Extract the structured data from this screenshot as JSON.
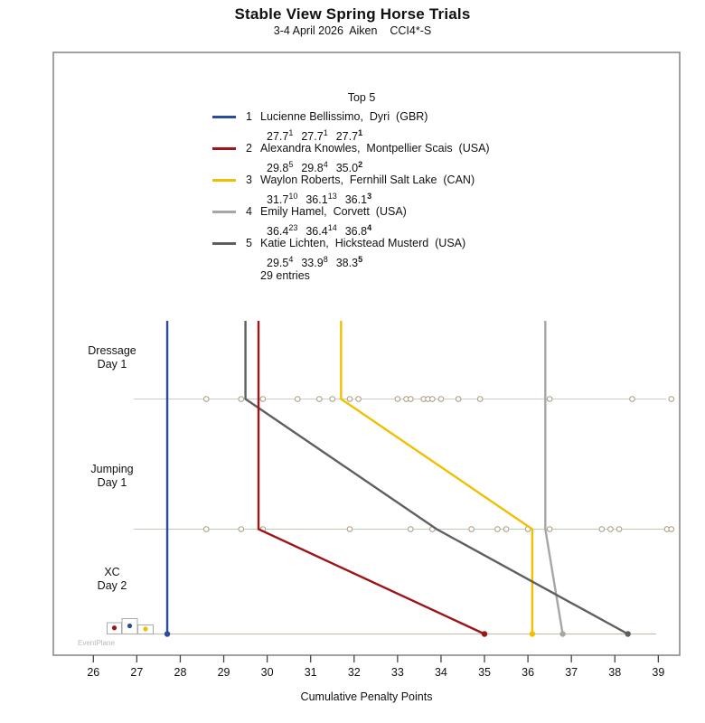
{
  "header": {
    "title": "Stable View Spring Horse Trials",
    "subtitle": "3-4 April 2026  Aiken    CCI4*-S"
  },
  "watermark": "EventPlane",
  "chart_data": {
    "type": "line",
    "title": "Stable View Spring Horse Trials",
    "subtitle": "3-4 April 2026  Aiken  CCI4*-S",
    "xlabel": "Cumulative Penalty Points",
    "xlim": [
      25.8,
      39.5
    ],
    "x_ticks": [
      26,
      27,
      28,
      29,
      30,
      31,
      32,
      33,
      34,
      35,
      36,
      37,
      38,
      39
    ],
    "phases": [
      {
        "name": "Dressage",
        "day": "Day 1"
      },
      {
        "name": "Jumping",
        "day": "Day 1"
      },
      {
        "name": "XC",
        "day": "Day 2"
      }
    ],
    "legend": {
      "heading": "Top 5",
      "entries_note": "29 entries",
      "entries": [
        {
          "rank": "1",
          "rider": "Lucienne Bellissimo",
          "horse": "Dyri",
          "nat": "GBR",
          "color": "#2d4b9a",
          "scores": [
            {
              "v": "27.7",
              "r": "1"
            },
            {
              "v": "27.7",
              "r": "1"
            },
            {
              "v": "27.7",
              "r": "1"
            }
          ]
        },
        {
          "rank": "2",
          "rider": "Alexandra Knowles",
          "horse": "Montpellier Scais",
          "nat": "USA",
          "color": "#9f1416",
          "scores": [
            {
              "v": "29.8",
              "r": "5"
            },
            {
              "v": "29.8",
              "r": "4"
            },
            {
              "v": "35.0",
              "r": "2"
            }
          ]
        },
        {
          "rank": "3",
          "rider": "Waylon Roberts",
          "horse": "Fernhill Salt Lake",
          "nat": "CAN",
          "color": "#f0c000",
          "scores": [
            {
              "v": "31.7",
              "r": "10"
            },
            {
              "v": "36.1",
              "r": "13"
            },
            {
              "v": "36.1",
              "r": "3"
            }
          ]
        },
        {
          "rank": "4",
          "rider": "Emily Hamel",
          "horse": "Corvett",
          "nat": "USA",
          "color": "#a6a6a6",
          "scores": [
            {
              "v": "36.4",
              "r": "23"
            },
            {
              "v": "36.4",
              "r": "14"
            },
            {
              "v": "36.8",
              "r": "4"
            }
          ]
        },
        {
          "rank": "5",
          "rider": "Katie Lichten",
          "horse": "Hickstead Musterd",
          "nat": "USA",
          "color": "#5f5f5f",
          "scores": [
            {
              "v": "29.5",
              "r": "4"
            },
            {
              "v": "33.9",
              "r": "8"
            },
            {
              "v": "38.3",
              "r": "5"
            }
          ]
        }
      ]
    },
    "series": [
      {
        "name": "Lucienne Bellissimo / Dyri",
        "color": "#2d4b9a",
        "values": [
          27.7,
          27.7,
          27.7
        ]
      },
      {
        "name": "Alexandra Knowles / Montpellier Scais",
        "color": "#9f1416",
        "values": [
          29.8,
          29.8,
          35.0
        ]
      },
      {
        "name": "Waylon Roberts / Fernhill Salt Lake",
        "color": "#f0c000",
        "values": [
          31.7,
          36.1,
          36.1
        ]
      },
      {
        "name": "Emily Hamel / Corvett",
        "color": "#a6a6a6",
        "values": [
          36.4,
          36.4,
          36.8
        ]
      },
      {
        "name": "Katie Lichten / Hickstead Musterd",
        "color": "#5f5f5f",
        "values": [
          29.5,
          33.9,
          38.3
        ]
      }
    ],
    "other_entries": {
      "dressage": [
        28.6,
        29.4,
        29.9,
        30.7,
        31.2,
        31.5,
        31.9,
        32.1,
        33.0,
        33.2,
        33.3,
        33.6,
        33.7,
        33.8,
        34.0,
        34.4,
        34.9,
        36.5,
        38.4,
        39.3
      ],
      "jumping": [
        28.6,
        29.4,
        29.9,
        31.9,
        33.3,
        33.8,
        34.7,
        35.3,
        35.5,
        36.0,
        36.5,
        37.7,
        37.9,
        38.1,
        39.2,
        39.3
      ]
    },
    "colors": {
      "dressage_row": "#cccccc",
      "jumping_row": "#b9cdb5",
      "xc_row": "#c9b8a2",
      "entry_marker_stroke": "#ab9b7e",
      "frame": "#8a8a8a",
      "tick": "#444444",
      "podium_box_stroke": "#aaaaaa",
      "podium_dots": [
        "#9f1416",
        "#2d4b9a",
        "#f0c000"
      ]
    },
    "legend_position": "top-center-inside",
    "grid": false
  }
}
